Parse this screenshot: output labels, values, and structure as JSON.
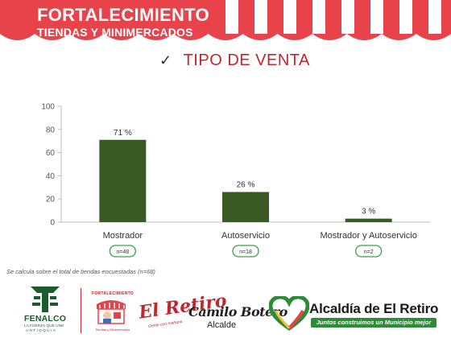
{
  "banner": {
    "title_line1": "FORTALECIMIENTO",
    "title_line2": "TIENDAS Y MINIMERCADOS",
    "colors": {
      "red": "#e8434b",
      "white": "#ffffff"
    }
  },
  "heading": {
    "check": "✓",
    "text": "TIPO DE VENTA",
    "color": "#c0282e"
  },
  "chart_data": {
    "type": "bar",
    "categories": [
      "Mostrador",
      "Autoservicio",
      "Mostrador y Autoservicio"
    ],
    "values": [
      71,
      26,
      3
    ],
    "value_labels": [
      "71 %",
      "26 %",
      "3 %"
    ],
    "counts": [
      "n=48",
      "n=18",
      "n=2"
    ],
    "ylim": [
      0,
      100
    ],
    "yticks": [
      0,
      20,
      40,
      60,
      80,
      100
    ],
    "grid": false,
    "bar_color": "#3a5a23",
    "count_badge_color": "#3aa04a"
  },
  "footnote": "Se calcula sobre el total de tiendas encuestadas (n=68)",
  "logos": {
    "fenalco": {
      "name": "FENALCO",
      "sub": "LA FUERZA QUE UNE",
      "region": "ANTIOQUIA",
      "color": "#1a5c2e"
    },
    "fortalecimiento": {
      "label": "FORTALECIMIENTO",
      "sub": "Tiendas y Minimercados"
    },
    "el_retiro": {
      "name": "El Retiro",
      "sub": "Gente con mañana"
    },
    "camilo": {
      "name": "Camilo Botero",
      "role": "Alcalde"
    },
    "alcaldia": {
      "name": "Alcaldía de El Retiro",
      "slogan": "Juntos construimos un Municipio mejor",
      "color": "#2e8b3a"
    }
  }
}
